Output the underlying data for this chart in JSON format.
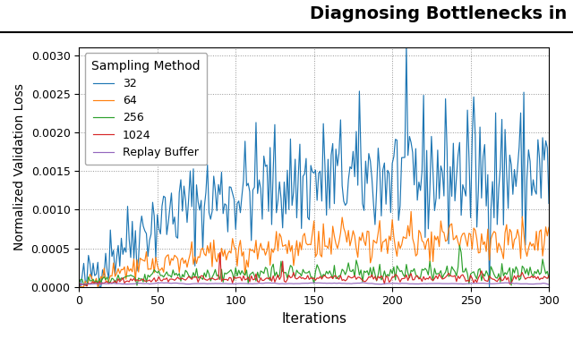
{
  "title": "Diagnosing Bottlenecks in",
  "xlabel": "Iterations",
  "ylabel": "Normalized Validation Loss",
  "xlim": [
    0,
    300
  ],
  "ylim": [
    0.0,
    0.0031
  ],
  "yticks": [
    0.0,
    0.0005,
    0.001,
    0.0015,
    0.002,
    0.0025,
    0.003
  ],
  "xticks": [
    0,
    50,
    100,
    150,
    200,
    250,
    300
  ],
  "legend_title": "Sampling Method",
  "legend_labels": [
    "32",
    "64",
    "256",
    "1024",
    "Replay Buffer"
  ],
  "line_colors": [
    "#1f77b4",
    "#ff7f0e",
    "#2ca02c",
    "#d62728",
    "#9467bd"
  ],
  "line_width": 0.85,
  "grid_linestyle": ":",
  "grid_color": "#888888",
  "bg_color": "#f5f5f0",
  "title_fontsize": 14,
  "axis_label_fontsize": 10,
  "legend_fontsize": 9,
  "n_points": 301
}
